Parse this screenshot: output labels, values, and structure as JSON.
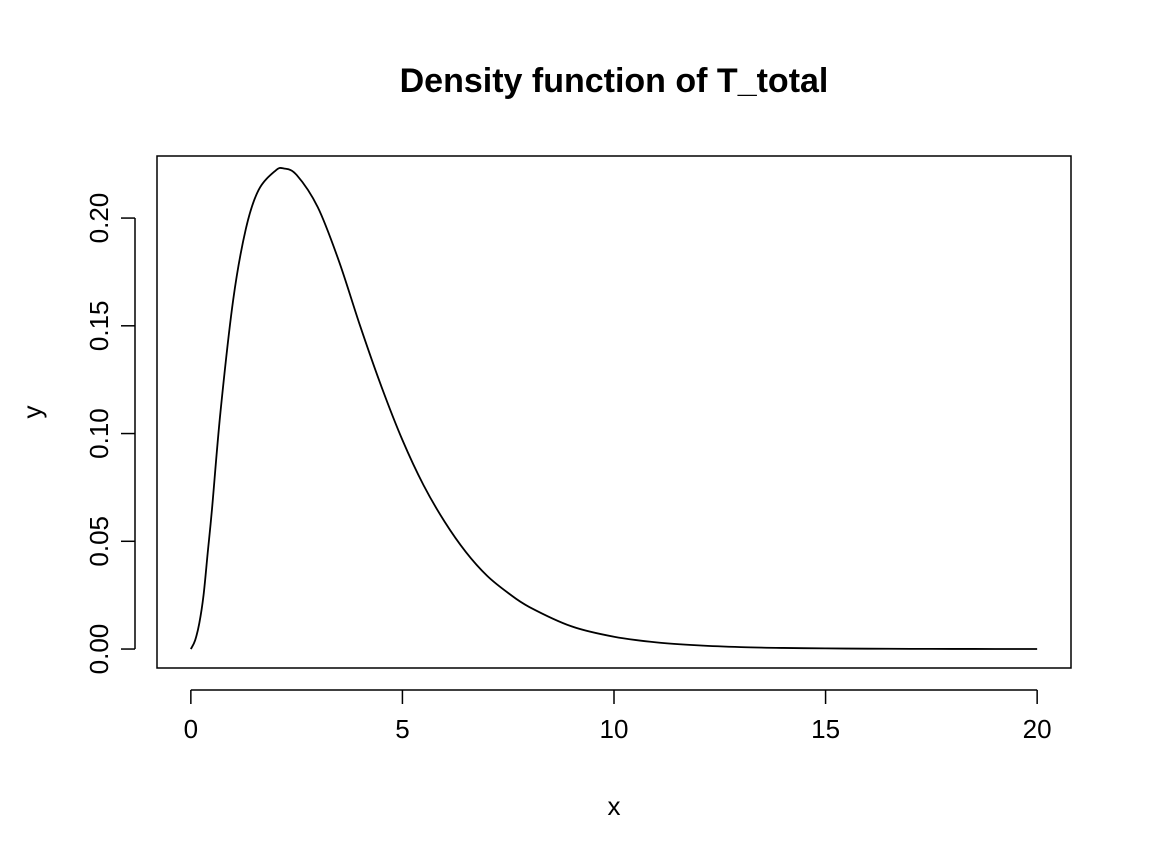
{
  "chart_data": {
    "type": "line",
    "title": "Density function of T_total",
    "xlabel": "x",
    "ylabel": "y",
    "xlim": [
      -0.8,
      20.8
    ],
    "ylim": [
      -0.0088,
      0.2288
    ],
    "x_ticks": [
      0,
      5,
      10,
      15,
      20
    ],
    "x_tick_labels": [
      "0",
      "5",
      "10",
      "15",
      "20"
    ],
    "y_ticks": [
      0,
      0.05,
      0.1,
      0.15,
      0.2
    ],
    "y_tick_labels": [
      "0.00",
      "0.05",
      "0.10",
      "0.15",
      "0.20"
    ],
    "grid": false,
    "line_color": "#000000",
    "series": [
      {
        "x": [
          0,
          0.1,
          0.2,
          0.3,
          0.4,
          0.5,
          0.7,
          1.0,
          1.3,
          1.6,
          2.0,
          2.2,
          2.5,
          3.0,
          3.5,
          4.0,
          4.5,
          5.0,
          5.5,
          6.0,
          6.5,
          7.0,
          7.5,
          8.0,
          9.0,
          10.0,
          11.0,
          12.0,
          13.0,
          14.0,
          15.0,
          16.0,
          17.0,
          18.0,
          19.0,
          20.0
        ],
        "values": [
          0,
          0.004,
          0.012,
          0.025,
          0.045,
          0.065,
          0.11,
          0.162,
          0.195,
          0.213,
          0.222,
          0.223,
          0.22,
          0.205,
          0.18,
          0.15,
          0.122,
          0.097,
          0.076,
          0.059,
          0.045,
          0.034,
          0.026,
          0.0195,
          0.0105,
          0.0057,
          0.0031,
          0.0017,
          0.0009,
          0.0005,
          0.0003,
          0.00016,
          9e-05,
          5e-05,
          3e-05,
          1e-05
        ]
      }
    ]
  }
}
